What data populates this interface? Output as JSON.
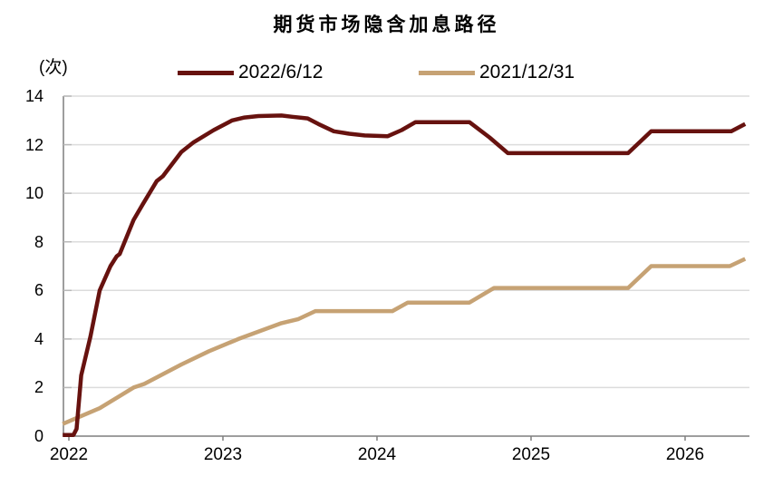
{
  "title": "期货市场隐含加息路径",
  "y_axis_unit": "(次)",
  "chart_data": {
    "type": "line",
    "title": "期货市场隐含加息路径",
    "xlabel": "",
    "ylabel": "(次)",
    "ylim": [
      0,
      14
    ],
    "y_ticks": [
      0,
      2,
      4,
      6,
      8,
      10,
      12,
      14
    ],
    "x_ticks": [
      2022,
      2023,
      2024,
      2025,
      2026
    ],
    "x_range": [
      2021.96,
      2026.42
    ],
    "grid": "horizontal-light-gray",
    "legend_position": "top-center",
    "axis_color": "#7f7f7f",
    "gridline_color": "#dcdcdc",
    "text_color": "#000000",
    "series": [
      {
        "name": "2022/6/12",
        "color": "#67120f",
        "points": [
          [
            2021.96,
            0.05
          ],
          [
            2022.03,
            0.05
          ],
          [
            2022.05,
            0.3
          ],
          [
            2022.08,
            2.5
          ],
          [
            2022.14,
            4.1
          ],
          [
            2022.2,
            6.0
          ],
          [
            2022.27,
            7.0
          ],
          [
            2022.31,
            7.4
          ],
          [
            2022.33,
            7.5
          ],
          [
            2022.42,
            8.9
          ],
          [
            2022.48,
            9.55
          ],
          [
            2022.57,
            10.5
          ],
          [
            2022.61,
            10.7
          ],
          [
            2022.73,
            11.7
          ],
          [
            2022.81,
            12.1
          ],
          [
            2022.94,
            12.6
          ],
          [
            2023.06,
            13.0
          ],
          [
            2023.14,
            13.12
          ],
          [
            2023.23,
            13.18
          ],
          [
            2023.38,
            13.2
          ],
          [
            2023.45,
            13.15
          ],
          [
            2023.55,
            13.08
          ],
          [
            2023.62,
            12.85
          ],
          [
            2023.72,
            12.55
          ],
          [
            2023.82,
            12.45
          ],
          [
            2023.92,
            12.38
          ],
          [
            2024.07,
            12.35
          ],
          [
            2024.16,
            12.6
          ],
          [
            2024.25,
            12.93
          ],
          [
            2024.6,
            12.93
          ],
          [
            2024.73,
            12.3
          ],
          [
            2024.85,
            11.65
          ],
          [
            2025.63,
            11.65
          ],
          [
            2025.78,
            12.55
          ],
          [
            2026.3,
            12.55
          ],
          [
            2026.39,
            12.85
          ]
        ]
      },
      {
        "name": "2021/12/31",
        "color": "#c6a274",
        "points": [
          [
            2021.96,
            0.5
          ],
          [
            2022.2,
            1.15
          ],
          [
            2022.42,
            2.0
          ],
          [
            2022.49,
            2.15
          ],
          [
            2022.73,
            2.95
          ],
          [
            2022.91,
            3.5
          ],
          [
            2023.1,
            4.0
          ],
          [
            2023.38,
            4.65
          ],
          [
            2023.49,
            4.82
          ],
          [
            2023.6,
            5.15
          ],
          [
            2024.1,
            5.15
          ],
          [
            2024.2,
            5.5
          ],
          [
            2024.6,
            5.5
          ],
          [
            2024.76,
            6.1
          ],
          [
            2025.63,
            6.1
          ],
          [
            2025.78,
            7.0
          ],
          [
            2026.29,
            7.0
          ],
          [
            2026.39,
            7.3
          ]
        ]
      }
    ]
  }
}
